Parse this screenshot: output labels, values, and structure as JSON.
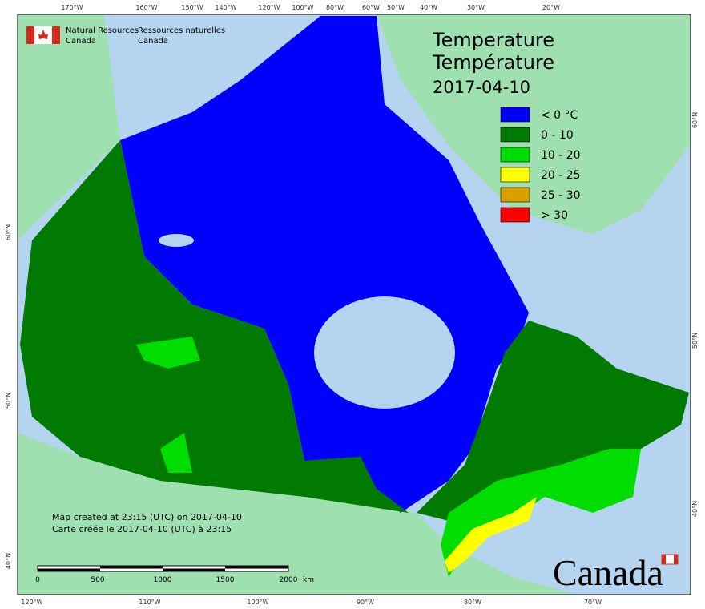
{
  "header": {
    "org_en": "Natural Resources",
    "org_en2": "Canada",
    "org_fr": "Ressources naturelles",
    "org_fr2": "Canada"
  },
  "title": {
    "en": "Temperature",
    "fr": "Température",
    "date": "2017-04-10"
  },
  "legend": [
    {
      "label": "< 0 °C",
      "color": "#0000ff"
    },
    {
      "label": "0 - 10",
      "color": "#007a00"
    },
    {
      "label": "10 - 20",
      "color": "#00dd00"
    },
    {
      "label": "20 - 25",
      "color": "#ffff00"
    },
    {
      "label": "25 - 30",
      "color": "#d9a000"
    },
    {
      "label": "> 30",
      "color": "#ff0000"
    }
  ],
  "credits": {
    "en": "Map created at 23:15 (UTC) on 2017-04-10",
    "fr": "Carte créée le 2017-04-10 (UTC) à 23:15"
  },
  "scale": {
    "labels": [
      "0",
      "500",
      "1000",
      "1500",
      "2000"
    ],
    "unit": "km"
  },
  "graticule": {
    "top": [
      "170°W",
      "160°W",
      "150°W",
      "140°W",
      "120°W",
      "100°W",
      "80°W",
      "60°W",
      "50°W",
      "40°W",
      "30°W",
      "20°W"
    ],
    "bottom": [
      "120°W",
      "110°W",
      "100°W",
      "90°W",
      "80°W",
      "70°W"
    ],
    "left": [
      "60°N",
      "50°N",
      "40°N"
    ],
    "right": [
      "60°N",
      "50°N",
      "40°N"
    ]
  },
  "wordmark": "Canada"
}
